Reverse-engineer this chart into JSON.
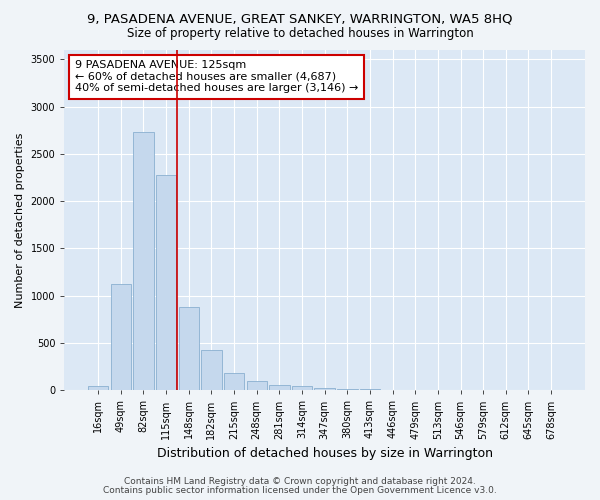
{
  "title": "9, PASADENA AVENUE, GREAT SANKEY, WARRINGTON, WA5 8HQ",
  "subtitle": "Size of property relative to detached houses in Warrington",
  "xlabel": "Distribution of detached houses by size in Warrington",
  "ylabel": "Number of detached properties",
  "categories": [
    "16sqm",
    "49sqm",
    "82sqm",
    "115sqm",
    "148sqm",
    "182sqm",
    "215sqm",
    "248sqm",
    "281sqm",
    "314sqm",
    "347sqm",
    "380sqm",
    "413sqm",
    "446sqm",
    "479sqm",
    "513sqm",
    "546sqm",
    "579sqm",
    "612sqm",
    "645sqm",
    "678sqm"
  ],
  "values": [
    50,
    1120,
    2730,
    2280,
    880,
    430,
    185,
    95,
    60,
    45,
    25,
    10,
    10,
    3,
    2,
    1,
    0,
    0,
    0,
    0,
    0
  ],
  "bar_color": "#c5d8ed",
  "bar_edgecolor": "#8ab0d0",
  "vline_x": 3.5,
  "highlight_color": "#cc0000",
  "annotation_text": "9 PASADENA AVENUE: 125sqm\n← 60% of detached houses are smaller (4,687)\n40% of semi-detached houses are larger (3,146) →",
  "annotation_box_facecolor": "#ffffff",
  "annotation_box_edgecolor": "#cc0000",
  "ylim": [
    0,
    3600
  ],
  "yticks": [
    0,
    500,
    1000,
    1500,
    2000,
    2500,
    3000,
    3500
  ],
  "footer1": "Contains HM Land Registry data © Crown copyright and database right 2024.",
  "footer2": "Contains public sector information licensed under the Open Government Licence v3.0.",
  "fig_bg_color": "#f0f4f8",
  "plot_bg_color": "#dce8f5",
  "title_fontsize": 9.5,
  "subtitle_fontsize": 8.5,
  "xlabel_fontsize": 9,
  "ylabel_fontsize": 8,
  "tick_fontsize": 7,
  "annotation_fontsize": 8,
  "footer_fontsize": 6.5
}
